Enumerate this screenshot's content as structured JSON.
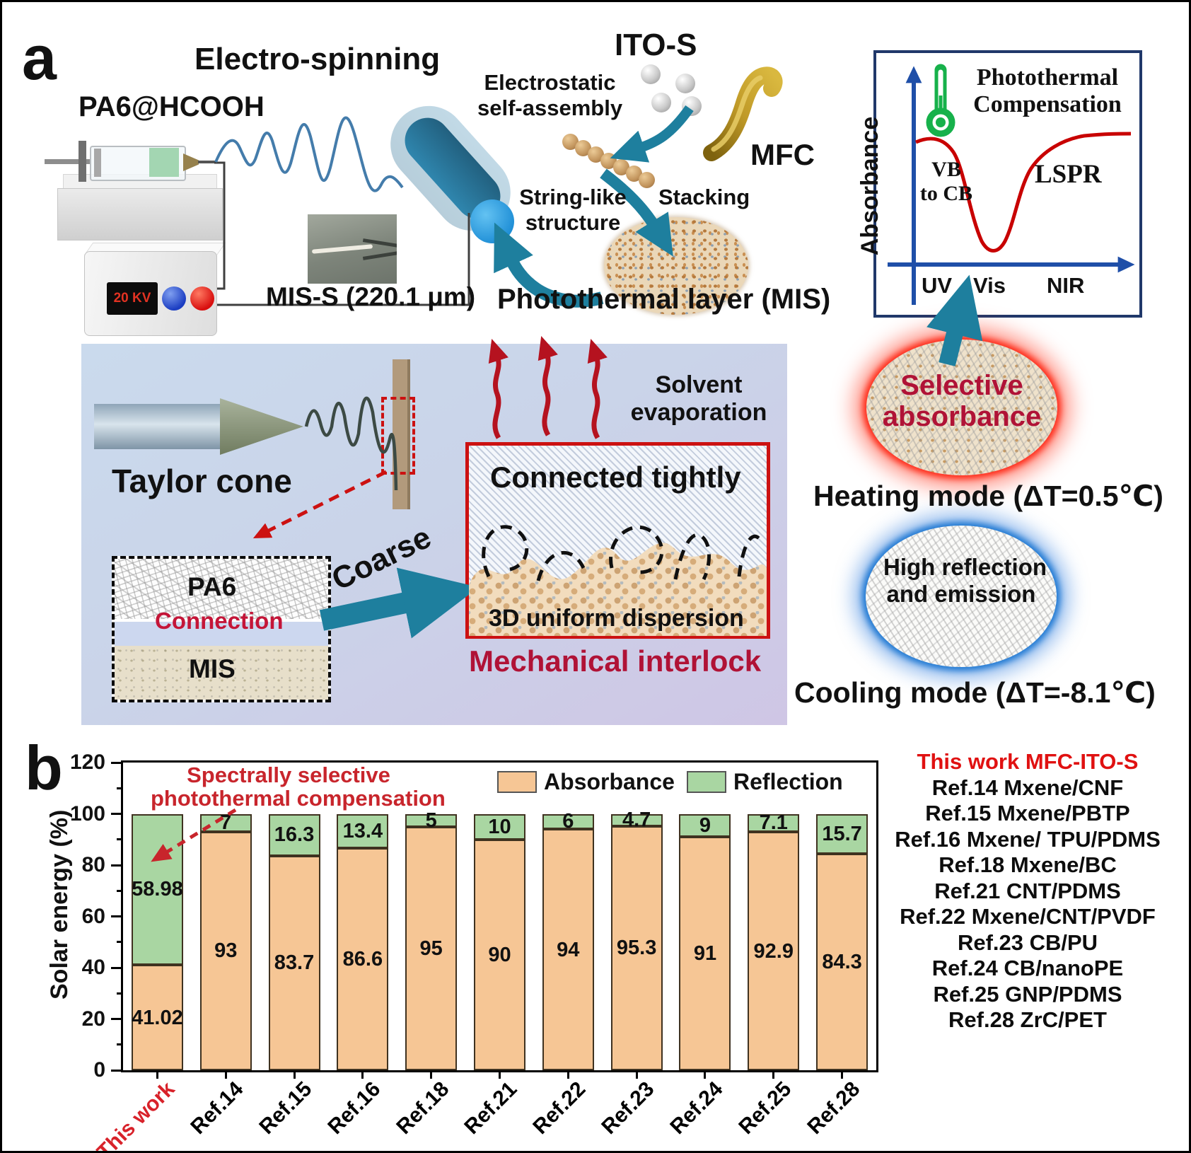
{
  "figure": {
    "panel_a_label": "a",
    "panel_b_label": "b"
  },
  "electrospinning": {
    "title": "Electro-spinning",
    "solution": "PA6@HCOOH",
    "voltage": "20 KV",
    "fiber_label": "MIS-S (220.1 μm)"
  },
  "assembly": {
    "ito": "ITO-S",
    "mfc": "MFC",
    "electrostatic_1": "Electrostatic",
    "electrostatic_2": "self-assembly",
    "string_1": "String-like",
    "string_2": "structure",
    "stacking": "Stacking",
    "layer_caption": "Photothermal layer (MIS)"
  },
  "spectrum_inset": {
    "title_1": "Photothermal",
    "title_2": "Compensation",
    "ylabel": "Absorbance",
    "region_left_1": "VB",
    "region_left_2": "to CB",
    "region_right": "LSPR",
    "tick_uv": "UV",
    "tick_vis": "Vis",
    "tick_nir": "NIR"
  },
  "process": {
    "taylor": "Taylor cone",
    "solvent_1": "Solvent",
    "solvent_2": "evaporation",
    "connected": "Connected tightly",
    "dispersion": "3D uniform dispersion",
    "interlock": "Mechanical interlock",
    "coarse": "Coarse",
    "layer_pa6": "PA6",
    "layer_connection": "Connection",
    "layer_mis": "MIS"
  },
  "modes": {
    "selective_1": "Selective",
    "selective_2": "absorbance",
    "heating": "Heating mode (ΔT=0.5℃)",
    "reflect_1": "High reflection",
    "reflect_2": "and emission",
    "cooling": "Cooling mode (ΔT=-8.1℃)"
  },
  "chart_data": {
    "type": "bar",
    "stacked": true,
    "title": "",
    "xlabel": "",
    "ylabel": "Solar energy (%)",
    "ylim": [
      0,
      120
    ],
    "yticks": [
      0,
      20,
      40,
      60,
      80,
      100,
      120
    ],
    "grid": false,
    "legend_position": "top",
    "categories": [
      "This work",
      "Ref.14",
      "Ref.15",
      "Ref.16",
      "Ref.18",
      "Ref.21",
      "Ref.22",
      "Ref.23",
      "Ref.24",
      "Ref.25",
      "Ref.28"
    ],
    "series": [
      {
        "name": "Absorbance",
        "color": "#f6c695",
        "values": [
          41.02,
          93,
          83.7,
          86.6,
          95,
          90,
          94,
          95.3,
          91,
          92.9,
          84.3
        ]
      },
      {
        "name": "Reflection",
        "color": "#a9d6a2",
        "values": [
          58.98,
          7,
          16.3,
          13.4,
          5,
          10,
          6,
          4.7,
          9,
          7.1,
          15.7
        ]
      }
    ],
    "annotation_1": "Spectrally selective",
    "annotation_2": "photothermal compensation",
    "annotation_color": "#c8252c",
    "highlight_category": "This work",
    "highlight_color": "#d8222a"
  },
  "references": {
    "highlight_color": "#e01111",
    "items": [
      "This work MFC-ITO-S",
      "Ref.14 Mxene/CNF",
      "Ref.15 Mxene/PBTP",
      "Ref.16 Mxene/ TPU/PDMS",
      "Ref.18 Mxene/BC",
      "Ref.21 CNT/PDMS",
      "Ref.22 Mxene/CNT/PVDF",
      "Ref.23 CB/PU",
      "Ref.24 CB/nanoPE",
      "Ref.25 GNP/PDMS",
      "Ref.28 ZrC/PET"
    ]
  }
}
